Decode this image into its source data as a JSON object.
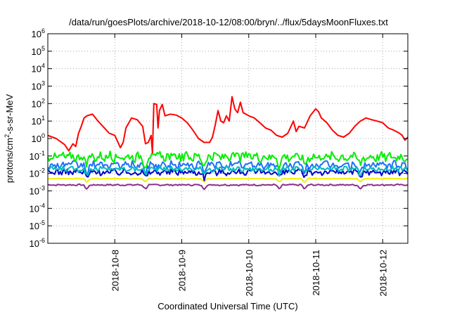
{
  "chart_data": {
    "type": "line",
    "title": "/data/run/goesPlots/archive/2018-10-12/08:00/bryn/../flux/5daysMoonFluxes.txt",
    "xlabel": "Coordinated Universal Time (UTC)",
    "ylabel": {
      "prefix": "protons/cm",
      "superscript": "2",
      "suffix": "-s-sr-MeV"
    },
    "yscale": "log",
    "ylim": [
      1e-06,
      1000000.0
    ],
    "yticks": [
      {
        "value": 1e-06,
        "base": "10",
        "exp": "-6"
      },
      {
        "value": 1e-05,
        "base": "10",
        "exp": "-5"
      },
      {
        "value": 0.0001,
        "base": "10",
        "exp": "-4"
      },
      {
        "value": 0.001,
        "base": "10",
        "exp": "-3"
      },
      {
        "value": 0.01,
        "base": "10",
        "exp": "-2"
      },
      {
        "value": 0.1,
        "base": "10",
        "exp": "-1"
      },
      {
        "value": 1,
        "base": "10",
        "exp": "0"
      },
      {
        "value": 10,
        "base": "10",
        "exp": "1"
      },
      {
        "value": 100,
        "base": "10",
        "exp": "2"
      },
      {
        "value": 1000,
        "base": "10",
        "exp": "3"
      },
      {
        "value": 10000,
        "base": "10",
        "exp": "4"
      },
      {
        "value": 100000,
        "base": "10",
        "exp": "5"
      },
      {
        "value": 1000000,
        "base": "10",
        "exp": "6"
      }
    ],
    "xlim": [
      "2018-10-07 00:00",
      "2018-10-12 09:00"
    ],
    "xticks": [
      "2018-10-8",
      "2018-10-9",
      "2018-10-10",
      "2018-10-11",
      "2018-10-12"
    ],
    "xtick_dates": [
      "2018-10-08 00:00",
      "2018-10-09 00:00",
      "2018-10-10 00:00",
      "2018-10-11 00:00",
      "2018-10-12 00:00"
    ],
    "grid": true,
    "grid_style": "dotted",
    "legend": "none",
    "series": [
      {
        "color": "#ff0000",
        "points": [
          [
            "2018-10-07 00:00",
            1.5
          ],
          [
            "2018-10-07 03:00",
            1.0
          ],
          [
            "2018-10-07 06:00",
            0.45
          ],
          [
            "2018-10-07 07:30",
            0.2
          ],
          [
            "2018-10-07 09:00",
            0.5
          ],
          [
            "2018-10-07 10:00",
            0.35
          ],
          [
            "2018-10-07 11:00",
            2.0
          ],
          [
            "2018-10-07 12:00",
            5.0
          ],
          [
            "2018-10-07 13:00",
            15
          ],
          [
            "2018-10-07 14:00",
            20
          ],
          [
            "2018-10-07 16:00",
            25
          ],
          [
            "2018-10-07 18:00",
            10
          ],
          [
            "2018-10-07 20:00",
            4.5
          ],
          [
            "2018-10-07 22:00",
            2.0
          ],
          [
            "2018-10-08 00:00",
            1.5
          ],
          [
            "2018-10-08 02:00",
            0.3
          ],
          [
            "2018-10-08 03:00",
            0.6
          ],
          [
            "2018-10-08 04:00",
            4.0
          ],
          [
            "2018-10-08 06:00",
            15
          ],
          [
            "2018-10-08 08:00",
            12
          ],
          [
            "2018-10-08 10:00",
            5
          ],
          [
            "2018-10-08 11:00",
            0.5
          ],
          [
            "2018-10-08 12:00",
            0.6
          ],
          [
            "2018-10-08 13:00",
            1.5
          ],
          [
            "2018-10-08 13:30",
            0.15
          ],
          [
            "2018-10-08 14:00",
            100
          ],
          [
            "2018-10-08 15:00",
            90
          ],
          [
            "2018-10-08 15:30",
            4
          ],
          [
            "2018-10-08 16:00",
            40
          ],
          [
            "2018-10-08 17:00",
            90
          ],
          [
            "2018-10-08 18:00",
            20
          ],
          [
            "2018-10-08 20:00",
            25
          ],
          [
            "2018-10-08 22:00",
            22
          ],
          [
            "2018-10-09 00:00",
            15
          ],
          [
            "2018-10-09 02:00",
            8
          ],
          [
            "2018-10-09 04:00",
            3
          ],
          [
            "2018-10-09 06:00",
            1.0
          ],
          [
            "2018-10-09 08:00",
            0.6
          ],
          [
            "2018-10-09 10:00",
            0.6
          ],
          [
            "2018-10-09 11:00",
            1.2
          ],
          [
            "2018-10-09 12:00",
            6
          ],
          [
            "2018-10-09 13:00",
            40
          ],
          [
            "2018-10-09 14:00",
            10
          ],
          [
            "2018-10-09 15:00",
            8
          ],
          [
            "2018-10-09 16:00",
            20
          ],
          [
            "2018-10-09 17:00",
            10
          ],
          [
            "2018-10-09 18:00",
            250
          ],
          [
            "2018-10-09 19:00",
            50
          ],
          [
            "2018-10-09 20:00",
            30
          ],
          [
            "2018-10-09 21:00",
            120
          ],
          [
            "2018-10-09 22:00",
            30
          ],
          [
            "2018-10-09 23:00",
            25
          ],
          [
            "2018-10-10 00:00",
            20
          ],
          [
            "2018-10-10 02:00",
            15
          ],
          [
            "2018-10-10 04:00",
            8
          ],
          [
            "2018-10-10 06:00",
            4
          ],
          [
            "2018-10-10 08:00",
            3
          ],
          [
            "2018-10-10 10:00",
            1.5
          ],
          [
            "2018-10-10 12:00",
            1.2
          ],
          [
            "2018-10-10 14:00",
            2.0
          ],
          [
            "2018-10-10 16:00",
            10
          ],
          [
            "2018-10-10 17:00",
            2.5
          ],
          [
            "2018-10-10 18:00",
            5
          ],
          [
            "2018-10-10 20:00",
            4
          ],
          [
            "2018-10-10 22:00",
            20
          ],
          [
            "2018-10-11 00:00",
            50
          ],
          [
            "2018-10-11 01:00",
            35
          ],
          [
            "2018-10-11 02:00",
            15
          ],
          [
            "2018-10-11 04:00",
            8
          ],
          [
            "2018-10-11 06:00",
            3
          ],
          [
            "2018-10-11 08:00",
            1.5
          ],
          [
            "2018-10-11 10:00",
            1.2
          ],
          [
            "2018-10-11 12:00",
            2.0
          ],
          [
            "2018-10-11 14:00",
            5
          ],
          [
            "2018-10-11 16:00",
            10
          ],
          [
            "2018-10-11 18:00",
            15
          ],
          [
            "2018-10-11 20:00",
            12
          ],
          [
            "2018-10-11 22:00",
            10
          ],
          [
            "2018-10-12 00:00",
            8
          ],
          [
            "2018-10-12 02:00",
            4
          ],
          [
            "2018-10-12 04:00",
            3
          ],
          [
            "2018-10-12 06:00",
            2
          ],
          [
            "2018-10-12 07:00",
            1.5
          ],
          [
            "2018-10-12 08:00",
            0.8
          ],
          [
            "2018-10-12 09:00",
            1.2
          ]
        ]
      },
      {
        "color": "#00ee00",
        "level": 0.09,
        "noise": 0.55,
        "dip_depth": 0.5
      },
      {
        "color": "#00bbbb",
        "level": 0.018,
        "noise": 0.3,
        "dip_depth": 0.3
      },
      {
        "color": "#1e6fff",
        "level": 0.03,
        "noise": 0.45,
        "dip_depth": 0.45
      },
      {
        "color": "#0000cc",
        "level": 0.012,
        "noise": 0.35,
        "dip_depth": 0.35
      },
      {
        "color": "#f0f000",
        "level": 0.005,
        "noise": 0.05,
        "dip_depth": 0.2
      },
      {
        "color": "#8b2e8b",
        "level": 0.0022,
        "noise": 0.08,
        "dip_depth": 0.25
      }
    ],
    "background_dips": [
      "2018-10-07 14:00",
      "2018-10-08 11:00",
      "2018-10-09 08:00",
      "2018-10-10 11:00",
      "2018-10-10 20:00",
      "2018-10-11 16:00"
    ]
  }
}
